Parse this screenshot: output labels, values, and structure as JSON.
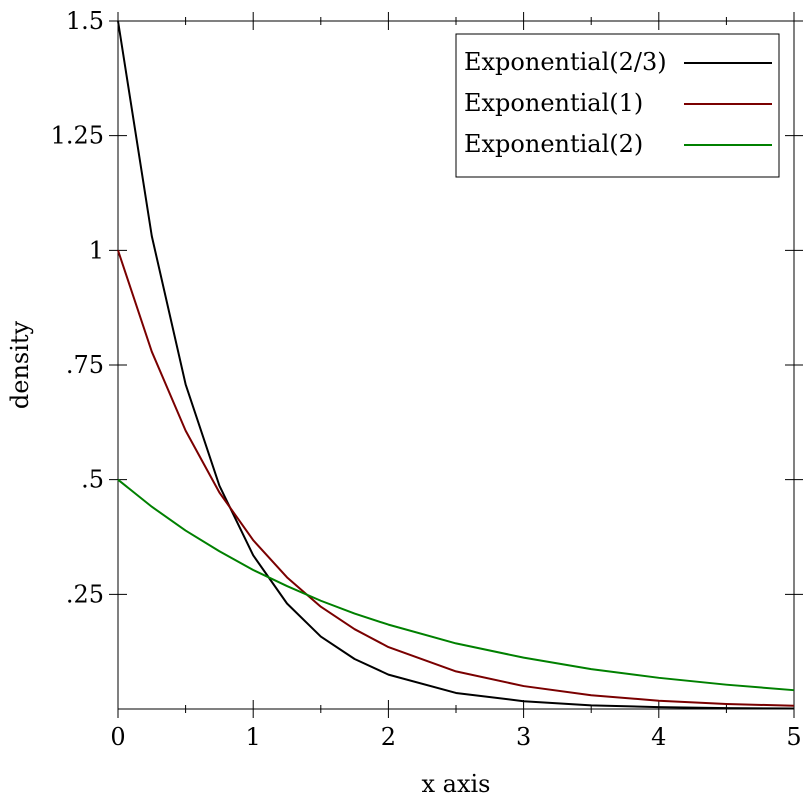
{
  "chart_data": {
    "type": "line",
    "xlabel": "x axis",
    "ylabel": "density",
    "xlim": [
      0,
      5
    ],
    "ylim": [
      0,
      1.5
    ],
    "x_ticks": [
      {
        "value": 0,
        "label": "0"
      },
      {
        "value": 1,
        "label": "1"
      },
      {
        "value": 2,
        "label": "2"
      },
      {
        "value": 3,
        "label": "3"
      },
      {
        "value": 4,
        "label": "4"
      },
      {
        "value": 5,
        "label": "5"
      }
    ],
    "y_ticks": [
      {
        "value": 0.25,
        "label": ".25"
      },
      {
        "value": 0.5,
        "label": ".5"
      },
      {
        "value": 0.75,
        "label": ".75"
      },
      {
        "value": 1,
        "label": "1"
      },
      {
        "value": 1.25,
        "label": "1.25"
      },
      {
        "value": 1.5,
        "label": "1.5"
      }
    ],
    "grid": false,
    "legend_position": "top-right",
    "series": [
      {
        "name": "Exponential(2/3)",
        "color": "#000000",
        "x": [
          0,
          0.25,
          0.5,
          0.75,
          1,
          1.25,
          1.5,
          1.75,
          2,
          2.5,
          3,
          3.5,
          4,
          4.5,
          5
        ],
        "y": [
          1.5,
          1.031,
          0.708,
          0.487,
          0.335,
          0.23,
          0.158,
          0.109,
          0.075,
          0.035,
          0.017,
          0.008,
          0.004,
          0.002,
          0.001
        ]
      },
      {
        "name": "Exponential(1)",
        "color": "#7a0000",
        "x": [
          0,
          0.25,
          0.5,
          0.75,
          1,
          1.25,
          1.5,
          1.75,
          2,
          2.5,
          3,
          3.5,
          4,
          4.5,
          5
        ],
        "y": [
          1,
          0.779,
          0.607,
          0.472,
          0.368,
          0.287,
          0.223,
          0.174,
          0.135,
          0.082,
          0.05,
          0.03,
          0.018,
          0.011,
          0.007
        ]
      },
      {
        "name": "Exponential(2)",
        "color": "#008000",
        "x": [
          0,
          0.25,
          0.5,
          0.75,
          1,
          1.25,
          1.5,
          1.75,
          2,
          2.5,
          3,
          3.5,
          4,
          4.5,
          5
        ],
        "y": [
          0.5,
          0.441,
          0.389,
          0.344,
          0.303,
          0.268,
          0.236,
          0.208,
          0.184,
          0.143,
          0.112,
          0.087,
          0.068,
          0.053,
          0.041
        ]
      }
    ]
  }
}
